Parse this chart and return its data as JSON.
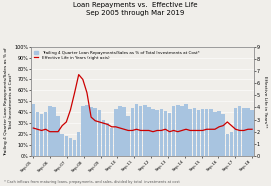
{
  "title": "Loan Repayments vs.  Effective Life\nSep 2005 through Mar 2019",
  "x_labels": [
    "Sep-05",
    "Sep-06",
    "Sep-07",
    "Sep-08",
    "Sep-09",
    "Sep-10",
    "Sep-11",
    "Sep-12",
    "Sep-13",
    "Sep-14",
    "Sep-15",
    "Sep-16",
    "Sep-17",
    "Sep-18"
  ],
  "bar_values": [
    48,
    40,
    38,
    40,
    46,
    45,
    37,
    20,
    18,
    16,
    15,
    22,
    46,
    47,
    45,
    44,
    42,
    33,
    30,
    26,
    43,
    46,
    45,
    37,
    44,
    48,
    46,
    47,
    45,
    43,
    42,
    43,
    41,
    39,
    46,
    47,
    46,
    48,
    43,
    44,
    42,
    43,
    43,
    43,
    40,
    41,
    38,
    20,
    22,
    44,
    46,
    44,
    44,
    42
  ],
  "line_values": [
    2.3,
    2.2,
    2.1,
    2.2,
    2.0,
    2.0,
    2.0,
    2.5,
    2.8,
    3.8,
    5.2,
    6.7,
    6.3,
    5.2,
    3.2,
    2.9,
    2.8,
    2.7,
    2.6,
    2.4,
    2.4,
    2.3,
    2.2,
    2.1,
    2.1,
    2.2,
    2.1,
    2.1,
    2.1,
    2.0,
    2.1,
    2.1,
    2.2,
    2.0,
    2.1,
    2.0,
    2.1,
    2.2,
    2.1,
    2.1,
    2.1,
    2.1,
    2.2,
    2.2,
    2.2,
    2.4,
    2.5,
    2.8,
    2.5,
    2.2,
    2.1,
    2.1,
    2.2,
    2.2
  ],
  "bar_color": "#a8c4e0",
  "line_color": "#cc0000",
  "ylabel_left": "Trailing 4 Quarter Loan Repayments/Sales as % of\nTotal Investments at Cost*",
  "ylabel_right": "Effective Life in Years**",
  "ylim_left": [
    0,
    100
  ],
  "ylim_right": [
    0,
    9
  ],
  "yticks_left": [
    0,
    10,
    20,
    30,
    40,
    50,
    60,
    70,
    80,
    90,
    100
  ],
  "ytick_labels_left": [
    "0%",
    "10%",
    "20%",
    "30%",
    "40%",
    "50%",
    "60%",
    "70%",
    "80%",
    "90%",
    "100%"
  ],
  "yticks_right": [
    0,
    1,
    2,
    3,
    4,
    5,
    6,
    7,
    8,
    9
  ],
  "ytick_labels_right": [
    "0",
    "1",
    "2",
    "3",
    "4",
    "5",
    "6",
    "7",
    "8",
    "9"
  ],
  "legend1": "Trailing 4 Quarter Loan Repayments/Sales as % of Total Investments at Cost*",
  "legend2": "Effective Life in Years (right axis)",
  "footnote1": " * Cash inflows from maturing loans, prepayments, and sales, divided by total  investments at cost",
  "background_color": "#f0eeea",
  "title_fontsize": 5.0,
  "label_fontsize": 3.2,
  "tick_fontsize": 3.5,
  "legend_fontsize": 3.0,
  "footnote_fontsize": 2.5
}
